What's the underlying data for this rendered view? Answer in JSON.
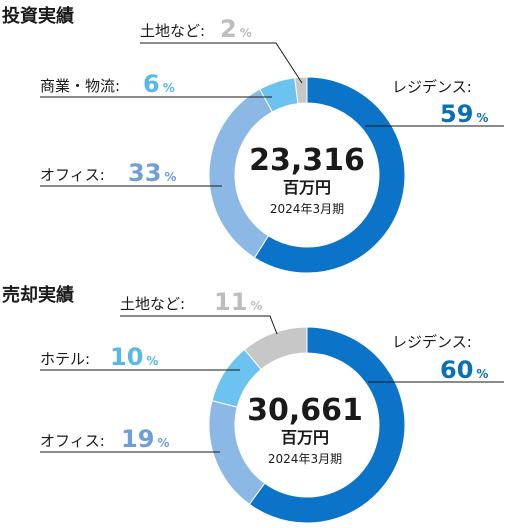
{
  "chart_data": [
    {
      "type": "pie",
      "title": "投資実績",
      "center_value": "23,316",
      "center_unit": "百万円",
      "center_note": "2024年3月期",
      "slices": [
        {
          "label": "レジデンス",
          "value": 59,
          "display": "59",
          "color": "#0b74c9"
        },
        {
          "label": "オフィス",
          "value": 33,
          "display": "33",
          "color": "#8cb8e6"
        },
        {
          "label": "商業・物流",
          "value": 6,
          "display": "6",
          "color": "#6cc3ef"
        },
        {
          "label": "土地など",
          "value": 2,
          "display": "2",
          "color": "#c7c7c7"
        }
      ],
      "percent_sign": "%",
      "label_suffix": ":"
    },
    {
      "type": "pie",
      "title": "売却実績",
      "center_value": "30,661",
      "center_unit": "百万円",
      "center_note": "2024年3月期",
      "slices": [
        {
          "label": "レジデンス",
          "value": 60,
          "display": "60",
          "color": "#0b74c9"
        },
        {
          "label": "オフィス",
          "value": 19,
          "display": "19",
          "color": "#8cb8e6"
        },
        {
          "label": "ホテル",
          "value": 10,
          "display": "10",
          "color": "#6cc3ef"
        },
        {
          "label": "土地など",
          "value": 11,
          "display": "11",
          "color": "#c7c7c7"
        }
      ],
      "percent_sign": "%",
      "label_suffix": ":"
    }
  ],
  "colors": {
    "residence_pct": "#0b6fb8",
    "office_pct": "#6f9fd6",
    "light_pct": "#5ab8e8",
    "land_pct": "#bdbdbd",
    "leader_line": "#1a1a1a"
  }
}
